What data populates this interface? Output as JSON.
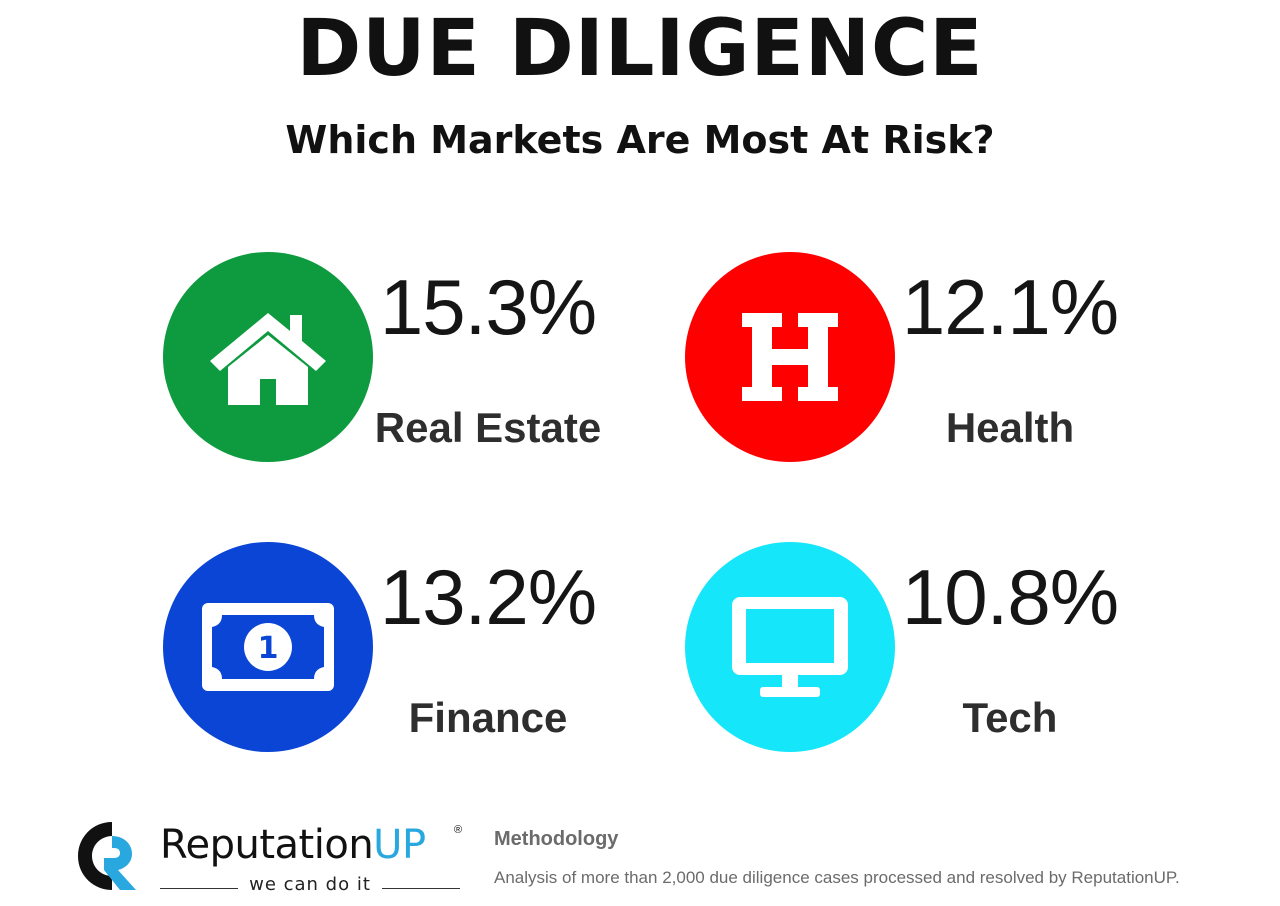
{
  "header": {
    "title": "DUE DILIGENCE",
    "subtitle": "Which Markets Are Most At Risk?"
  },
  "markets": [
    {
      "label": "Real Estate",
      "percent": "15.3%",
      "color": "#0e9a3f",
      "icon": "house-icon"
    },
    {
      "label": "Health",
      "percent": "12.1%",
      "color": "#ff0000",
      "icon": "hospital-h-icon"
    },
    {
      "label": "Finance",
      "percent": "13.2%",
      "color": "#0b45d6",
      "icon": "banknote-icon"
    },
    {
      "label": "Tech",
      "percent": "10.8%",
      "color": "#16e6fa",
      "icon": "monitor-icon"
    }
  ],
  "footer": {
    "brand": {
      "name_main": "Reputation",
      "name_accent": "UP",
      "tagline": "we can do it",
      "accent_color": "#29a8e0"
    },
    "methodology_title": "Methodology",
    "methodology_text": "Analysis of more than 2,000 due diligence cases processed and resolved by ReputationUP."
  }
}
